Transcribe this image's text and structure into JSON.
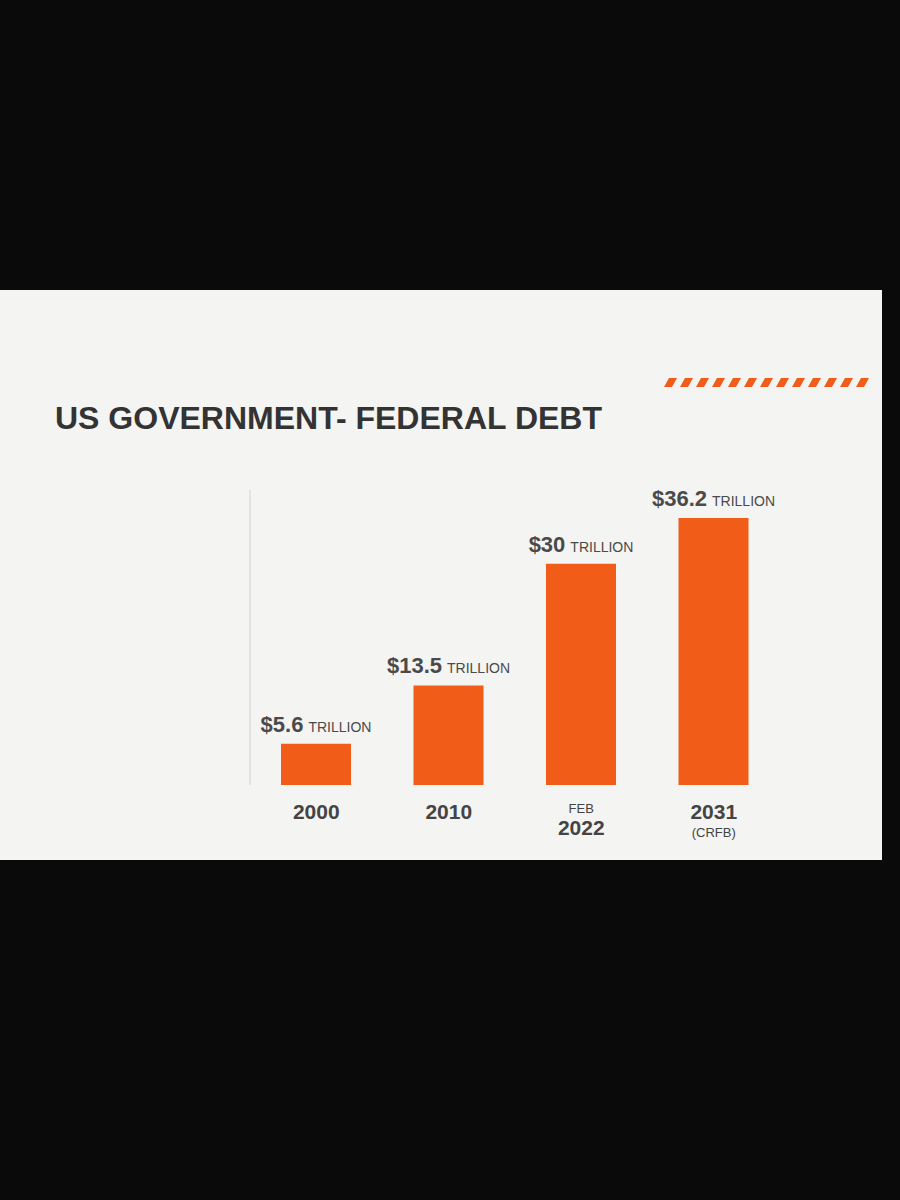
{
  "chart_data": {
    "type": "bar",
    "title": "US GOVERNMENT- FEDERAL DEBT",
    "categories": [
      "2000",
      "2010",
      "FEB 2022",
      "2031 (CRFB)"
    ],
    "values": [
      5.6,
      13.5,
      30,
      36.2
    ],
    "value_labels": [
      "$5.6 TRILLION",
      "$13.5 TRILLION",
      "$30 TRILLION",
      "$36.2 TRILLION"
    ],
    "color": "#f25c19",
    "ylim": [
      0,
      40
    ],
    "data_labels": true,
    "tick_labels": "x",
    "grid": false
  }
}
